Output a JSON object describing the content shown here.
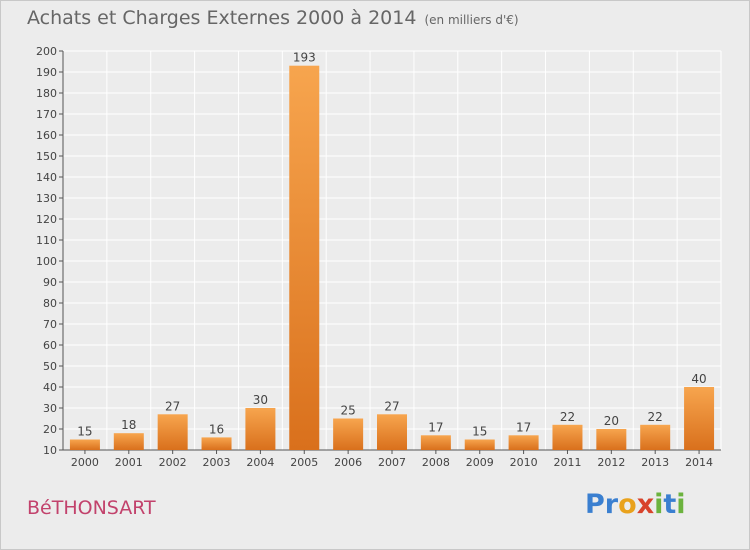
{
  "header": {
    "title": "Achats et Charges Externes 2000 à 2014",
    "unit": "(en milliers d'€)"
  },
  "footer": {
    "commune": "BéTHONSART",
    "logo_text": "Proxiti"
  },
  "colors": {
    "bar_light": "#f7a54e",
    "bar_dark": "#d9701c",
    "grid": "#ffffff",
    "background": "#ececec",
    "commune": "#c2426c"
  },
  "chart_data": {
    "type": "bar",
    "title": "Achats et Charges Externes 2000 à 2014",
    "subtitle": "(en milliers d'€)",
    "categories": [
      "2000",
      "2001",
      "2002",
      "2003",
      "2004",
      "2005",
      "2006",
      "2007",
      "2008",
      "2009",
      "2010",
      "2011",
      "2012",
      "2013",
      "2014"
    ],
    "values": [
      15,
      18,
      27,
      16,
      30,
      193,
      25,
      27,
      17,
      15,
      17,
      22,
      20,
      22,
      40
    ],
    "ylim": [
      10,
      200
    ],
    "yticks": [
      10,
      20,
      30,
      40,
      50,
      60,
      70,
      80,
      90,
      100,
      110,
      120,
      130,
      140,
      150,
      160,
      170,
      180,
      190,
      200
    ],
    "grid": true,
    "xlabel": "",
    "ylabel": ""
  }
}
